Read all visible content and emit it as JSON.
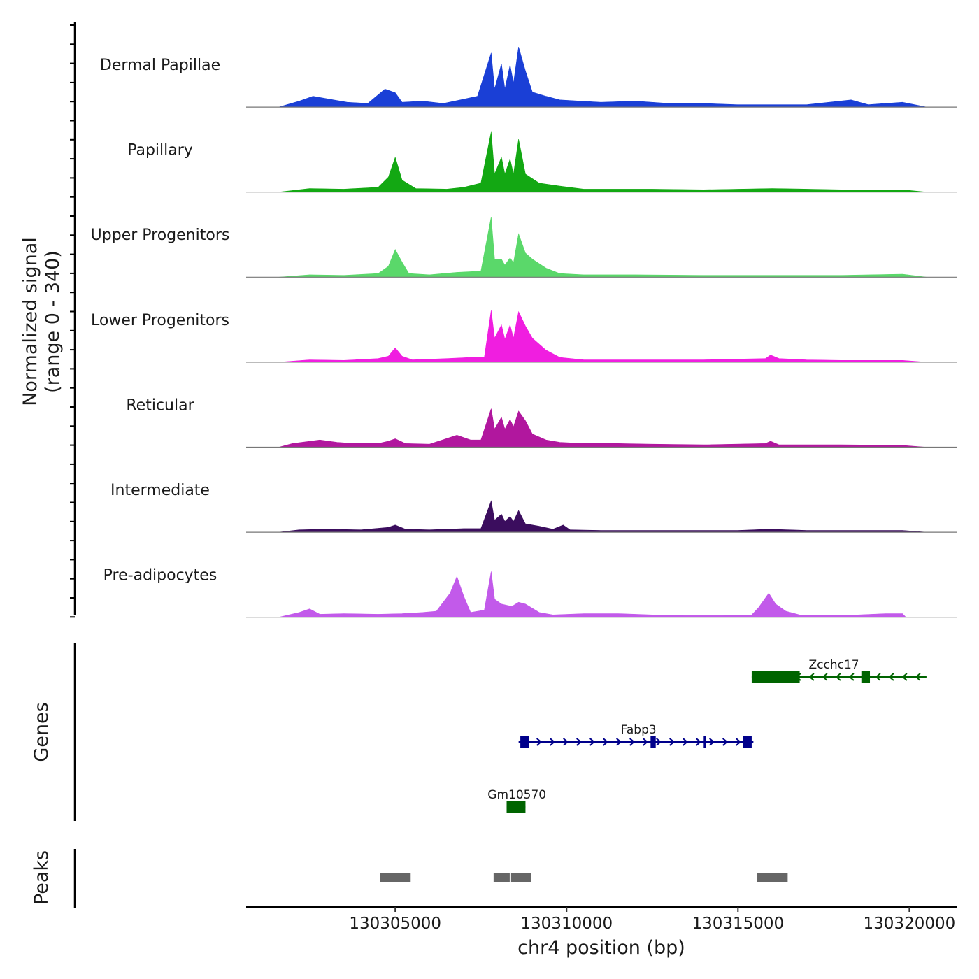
{
  "chart_data": {
    "type": "area",
    "title": "",
    "ylabel_line1": "Normalized signal",
    "ylabel_line2": "(range 0 - 340)",
    "xlabel": "chr4 position (bp)",
    "ylim": [
      0,
      340
    ],
    "xlim": [
      130300650,
      130321400
    ],
    "x_ticks": [
      130305000,
      130310000,
      130315000,
      130320000
    ],
    "x_tick_labels": [
      "130305000",
      "130310000",
      "130315000",
      "130320000"
    ],
    "genes_label": "Genes",
    "peaks_label": "Peaks",
    "tracks": [
      {
        "name": "Dermal Papillae",
        "color": "#1a3fd6",
        "points": [
          [
            130301600,
            0
          ],
          [
            130302200,
            10
          ],
          [
            130302600,
            18
          ],
          [
            130303200,
            12
          ],
          [
            130303600,
            8
          ],
          [
            130304200,
            6
          ],
          [
            130304700,
            30
          ],
          [
            130305000,
            24
          ],
          [
            130305200,
            8
          ],
          [
            130305800,
            10
          ],
          [
            130306400,
            6
          ],
          [
            130306900,
            12
          ],
          [
            130307400,
            18
          ],
          [
            130307800,
            90
          ],
          [
            130307900,
            30
          ],
          [
            130308100,
            72
          ],
          [
            130308200,
            30
          ],
          [
            130308350,
            70
          ],
          [
            130308450,
            40
          ],
          [
            130308600,
            100
          ],
          [
            130308800,
            60
          ],
          [
            130309000,
            25
          ],
          [
            130309400,
            18
          ],
          [
            130309800,
            12
          ],
          [
            130310400,
            10
          ],
          [
            130311000,
            8
          ],
          [
            130312000,
            10
          ],
          [
            130313000,
            6
          ],
          [
            130314000,
            6
          ],
          [
            130315000,
            4
          ],
          [
            130316000,
            4
          ],
          [
            130317000,
            4
          ],
          [
            130318300,
            12
          ],
          [
            130318800,
            4
          ],
          [
            130319800,
            8
          ],
          [
            130320500,
            0
          ]
        ]
      },
      {
        "name": "Papillary",
        "color": "#13a813",
        "points": [
          [
            130301600,
            0
          ],
          [
            130302500,
            6
          ],
          [
            130303500,
            5
          ],
          [
            130304500,
            8
          ],
          [
            130304800,
            25
          ],
          [
            130305000,
            58
          ],
          [
            130305200,
            20
          ],
          [
            130305600,
            6
          ],
          [
            130306500,
            5
          ],
          [
            130307000,
            8
          ],
          [
            130307500,
            15
          ],
          [
            130307800,
            100
          ],
          [
            130307900,
            30
          ],
          [
            130308100,
            58
          ],
          [
            130308200,
            30
          ],
          [
            130308350,
            55
          ],
          [
            130308450,
            30
          ],
          [
            130308600,
            88
          ],
          [
            130308800,
            30
          ],
          [
            130309200,
            15
          ],
          [
            130309800,
            10
          ],
          [
            130310500,
            5
          ],
          [
            130311500,
            5
          ],
          [
            130312500,
            5
          ],
          [
            130314000,
            4
          ],
          [
            130316000,
            6
          ],
          [
            130318000,
            4
          ],
          [
            130319800,
            4
          ],
          [
            130320500,
            0
          ]
        ]
      },
      {
        "name": "Upper Progenitors",
        "color": "#5ad86a",
        "points": [
          [
            130301600,
            0
          ],
          [
            130302500,
            4
          ],
          [
            130303500,
            3
          ],
          [
            130304500,
            6
          ],
          [
            130304800,
            18
          ],
          [
            130305000,
            46
          ],
          [
            130305200,
            25
          ],
          [
            130305400,
            6
          ],
          [
            130306000,
            4
          ],
          [
            130306800,
            8
          ],
          [
            130307500,
            10
          ],
          [
            130307800,
            100
          ],
          [
            130307900,
            30
          ],
          [
            130308100,
            30
          ],
          [
            130308200,
            20
          ],
          [
            130308350,
            32
          ],
          [
            130308450,
            24
          ],
          [
            130308600,
            72
          ],
          [
            130308800,
            40
          ],
          [
            130309000,
            30
          ],
          [
            130309400,
            15
          ],
          [
            130309800,
            6
          ],
          [
            130310500,
            4
          ],
          [
            130312000,
            4
          ],
          [
            130314000,
            3
          ],
          [
            130316000,
            3
          ],
          [
            130318000,
            3
          ],
          [
            130319800,
            5
          ],
          [
            130320500,
            0
          ]
        ]
      },
      {
        "name": "Lower Progenitors",
        "color": "#f01ee0",
        "points": [
          [
            130301600,
            0
          ],
          [
            130302500,
            4
          ],
          [
            130303500,
            3
          ],
          [
            130304500,
            6
          ],
          [
            130304800,
            10
          ],
          [
            130305000,
            24
          ],
          [
            130305200,
            10
          ],
          [
            130305500,
            4
          ],
          [
            130306500,
            6
          ],
          [
            130307200,
            8
          ],
          [
            130307600,
            8
          ],
          [
            130307800,
            86
          ],
          [
            130307900,
            40
          ],
          [
            130308100,
            62
          ],
          [
            130308200,
            38
          ],
          [
            130308350,
            62
          ],
          [
            130308450,
            40
          ],
          [
            130308600,
            84
          ],
          [
            130308800,
            60
          ],
          [
            130309000,
            40
          ],
          [
            130309400,
            20
          ],
          [
            130309800,
            8
          ],
          [
            130310500,
            4
          ],
          [
            130312000,
            4
          ],
          [
            130314000,
            4
          ],
          [
            130315800,
            6
          ],
          [
            130315950,
            12
          ],
          [
            130316200,
            6
          ],
          [
            130317000,
            4
          ],
          [
            130318000,
            3
          ],
          [
            130319800,
            3
          ],
          [
            130320500,
            0
          ]
        ]
      },
      {
        "name": "Reticular",
        "color": "#b1179e",
        "points": [
          [
            130301600,
            0
          ],
          [
            130302000,
            6
          ],
          [
            130302800,
            12
          ],
          [
            130303300,
            8
          ],
          [
            130303800,
            6
          ],
          [
            130304500,
            6
          ],
          [
            130304800,
            10
          ],
          [
            130305000,
            14
          ],
          [
            130305300,
            6
          ],
          [
            130306000,
            5
          ],
          [
            130306800,
            20
          ],
          [
            130307200,
            12
          ],
          [
            130307500,
            12
          ],
          [
            130307800,
            64
          ],
          [
            130307900,
            30
          ],
          [
            130308100,
            50
          ],
          [
            130308200,
            30
          ],
          [
            130308350,
            46
          ],
          [
            130308450,
            34
          ],
          [
            130308600,
            60
          ],
          [
            130308800,
            44
          ],
          [
            130309000,
            22
          ],
          [
            130309400,
            12
          ],
          [
            130309800,
            8
          ],
          [
            130310500,
            6
          ],
          [
            130311500,
            6
          ],
          [
            130312500,
            5
          ],
          [
            130314000,
            4
          ],
          [
            130315800,
            6
          ],
          [
            130315950,
            10
          ],
          [
            130316200,
            4
          ],
          [
            130317000,
            4
          ],
          [
            130318000,
            4
          ],
          [
            130319800,
            3
          ],
          [
            130320500,
            0
          ]
        ]
      },
      {
        "name": "Intermediate",
        "color": "#3b0d5e",
        "points": [
          [
            130301600,
            0
          ],
          [
            130302200,
            4
          ],
          [
            130303000,
            5
          ],
          [
            130304000,
            4
          ],
          [
            130304800,
            8
          ],
          [
            130305000,
            12
          ],
          [
            130305300,
            5
          ],
          [
            130306000,
            4
          ],
          [
            130307000,
            6
          ],
          [
            130307500,
            6
          ],
          [
            130307800,
            52
          ],
          [
            130307900,
            20
          ],
          [
            130308100,
            30
          ],
          [
            130308200,
            18
          ],
          [
            130308350,
            26
          ],
          [
            130308450,
            18
          ],
          [
            130308600,
            36
          ],
          [
            130308800,
            14
          ],
          [
            130309200,
            10
          ],
          [
            130309600,
            5
          ],
          [
            130309900,
            12
          ],
          [
            130310100,
            4
          ],
          [
            130311000,
            3
          ],
          [
            130313000,
            3
          ],
          [
            130315000,
            3
          ],
          [
            130315900,
            5
          ],
          [
            130317000,
            3
          ],
          [
            130319800,
            3
          ],
          [
            130320500,
            0
          ]
        ]
      },
      {
        "name": "Pre-adipocytes",
        "color": "#c25aea",
        "points": [
          [
            130301600,
            0
          ],
          [
            130302200,
            8
          ],
          [
            130302500,
            14
          ],
          [
            130302800,
            5
          ],
          [
            130303500,
            6
          ],
          [
            130304500,
            5
          ],
          [
            130305200,
            6
          ],
          [
            130305800,
            8
          ],
          [
            130306200,
            10
          ],
          [
            130306600,
            40
          ],
          [
            130306800,
            68
          ],
          [
            130307000,
            35
          ],
          [
            130307200,
            8
          ],
          [
            130307600,
            12
          ],
          [
            130307800,
            76
          ],
          [
            130307900,
            30
          ],
          [
            130308100,
            22
          ],
          [
            130308400,
            18
          ],
          [
            130308600,
            25
          ],
          [
            130308800,
            22
          ],
          [
            130309200,
            8
          ],
          [
            130309600,
            4
          ],
          [
            130310500,
            6
          ],
          [
            130311500,
            6
          ],
          [
            130312500,
            4
          ],
          [
            130313500,
            3
          ],
          [
            130314500,
            3
          ],
          [
            130315400,
            4
          ],
          [
            130315600,
            16
          ],
          [
            130315900,
            40
          ],
          [
            130316100,
            22
          ],
          [
            130316400,
            10
          ],
          [
            130316800,
            4
          ],
          [
            130317500,
            4
          ],
          [
            130318500,
            4
          ],
          [
            130319300,
            6
          ],
          [
            130319800,
            6
          ],
          [
            130319900,
            0
          ]
        ]
      }
    ],
    "genes": [
      {
        "name": "Zcchc17",
        "color": "#006400",
        "strand": "-",
        "start": 130315400,
        "end": 130320500,
        "row": 0,
        "exons": [
          [
            130315400,
            130316800
          ],
          [
            130318600,
            130318850
          ]
        ]
      },
      {
        "name": "Fabp3",
        "color": "#00008b",
        "strand": "+",
        "start": 130308600,
        "end": 130315450,
        "row": 1,
        "exons": [
          [
            130308650,
            130308900
          ],
          [
            130312450,
            130312600
          ],
          [
            130314000,
            130314070
          ],
          [
            130315150,
            130315400
          ]
        ]
      },
      {
        "name": "Gm10570",
        "color": "#006400",
        "strand": "+",
        "start": 130308250,
        "end": 130308800,
        "row": 2,
        "exons": [
          [
            130308250,
            130308800
          ]
        ]
      }
    ],
    "peaks": [
      {
        "start": 130304550,
        "end": 130305450
      },
      {
        "start": 130307870,
        "end": 130308340
      },
      {
        "start": 130308380,
        "end": 130308960
      },
      {
        "start": 130315550,
        "end": 130316450
      }
    ],
    "peak_color": "#666666"
  }
}
